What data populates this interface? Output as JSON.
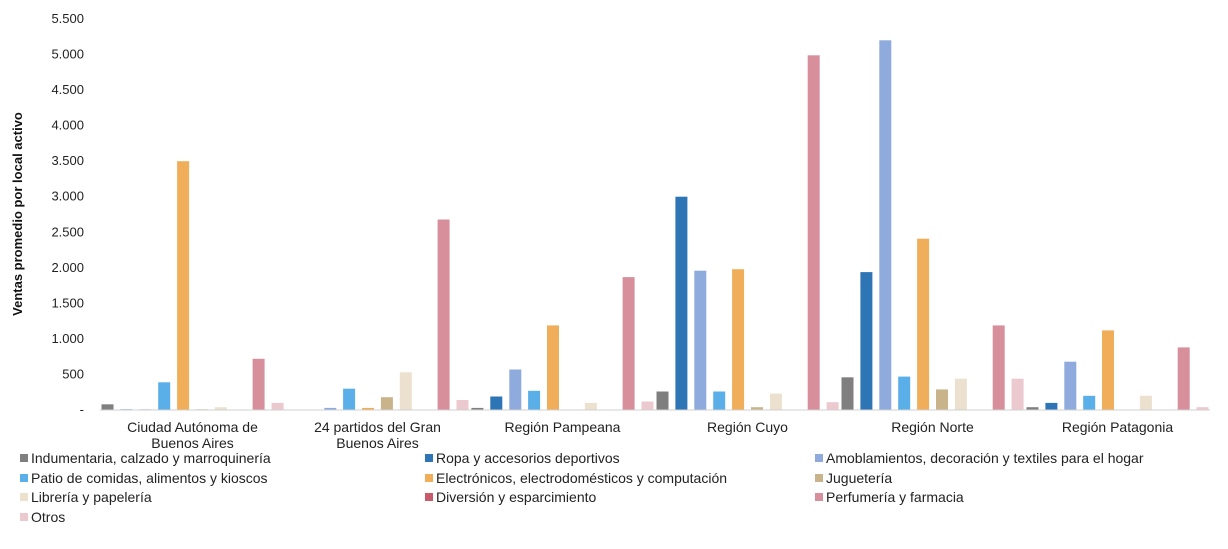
{
  "chart_data": {
    "type": "bar",
    "ylabel": "Ventas promedio por local activo",
    "ylim": [
      0,
      5500
    ],
    "yticks": [
      "-",
      "500",
      "1.000",
      "1.500",
      "2.000",
      "2.500",
      "3.000",
      "3.500",
      "4.000",
      "4.500",
      "5.000",
      "5.500"
    ],
    "grid": false,
    "legend_position": "bottom",
    "categories": [
      [
        "Ciudad Autónoma de",
        "Buenos Aires"
      ],
      [
        "24 partidos del Gran",
        "Buenos Aires"
      ],
      [
        "Región Pampeana"
      ],
      [
        "Región Cuyo"
      ],
      [
        "Región Norte"
      ],
      [
        "Región Patagonia"
      ]
    ],
    "series": [
      {
        "name": "Indumentaria, calzado y marroquinería",
        "color": "#7f7f7f",
        "values": [
          80,
          0,
          30,
          260,
          460,
          40
        ]
      },
      {
        "name": "Ropa y accesorios deportivos",
        "color": "#2e75b6",
        "values": [
          10,
          0,
          190,
          3000,
          1940,
          100
        ]
      },
      {
        "name": "Amoblamientos, decoración y textiles para el hogar",
        "color": "#8faadc",
        "values": [
          10,
          30,
          570,
          1960,
          5200,
          680
        ]
      },
      {
        "name": "Patio de comidas, alimentos y kioscos",
        "color": "#5aafe8",
        "values": [
          390,
          300,
          270,
          260,
          470,
          200
        ]
      },
      {
        "name": "Electrónicos, electrodomésticos y computación",
        "color": "#f0ad5a",
        "values": [
          3500,
          30,
          1190,
          1980,
          2410,
          1120
        ]
      },
      {
        "name": "Juguetería",
        "color": "#c9b38b",
        "values": [
          10,
          180,
          0,
          40,
          290,
          0
        ]
      },
      {
        "name": "Librería y papelería",
        "color": "#ece1cf",
        "values": [
          40,
          530,
          100,
          230,
          440,
          200
        ]
      },
      {
        "name": "Diversión y esparcimiento",
        "color": "#c85a6a",
        "values": [
          0,
          0,
          0,
          0,
          0,
          0
        ]
      },
      {
        "name": "Perfumería y farmacia",
        "color": "#d88f9c",
        "values": [
          720,
          2680,
          1870,
          4990,
          1190,
          880
        ]
      },
      {
        "name": "Otros",
        "color": "#ecc8cf",
        "values": [
          100,
          140,
          120,
          110,
          440,
          40
        ]
      }
    ]
  }
}
